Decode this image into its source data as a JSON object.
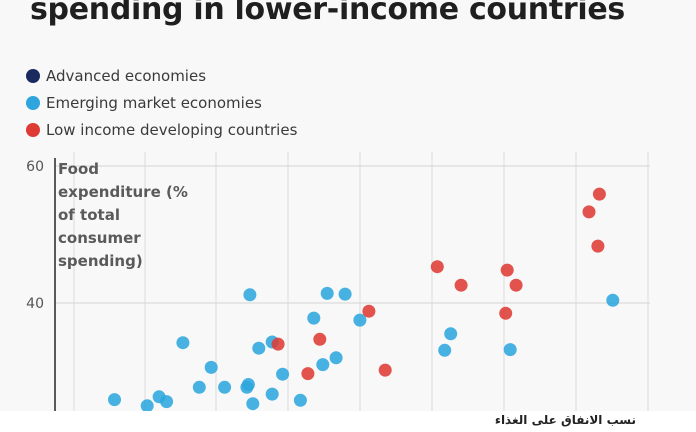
{
  "chart_data": {
    "type": "scatter",
    "title": "spending in lower-income countries",
    "ylabel": "Food expenditure (% of total consumer spending)",
    "xlabel": "",
    "ylim": [
      25,
      62
    ],
    "yticks": [
      40,
      60
    ],
    "grid": true,
    "legend_placement": "top-left",
    "series": [
      {
        "name": "Advanced economies",
        "color": "#1b2a5e",
        "points": []
      },
      {
        "name": "Emerging market economies",
        "color": "#2ea6dd",
        "points": [
          [
            26,
            25.9
          ],
          [
            29,
            26.3
          ],
          [
            29.5,
            25.6
          ],
          [
            28.2,
            25.0
          ],
          [
            30.6,
            34.2
          ],
          [
            31.7,
            27.7
          ],
          [
            32.5,
            30.6
          ],
          [
            33.4,
            27.7
          ],
          [
            34.9,
            27.7
          ],
          [
            35,
            28.1
          ],
          [
            35.1,
            41.2
          ],
          [
            35.3,
            25.3
          ],
          [
            35.7,
            33.4
          ],
          [
            36.6,
            26.7
          ],
          [
            37.3,
            29.6
          ],
          [
            36.6,
            34.3
          ],
          [
            38.5,
            25.8
          ],
          [
            39.4,
            37.8
          ],
          [
            40,
            31.0
          ],
          [
            40.3,
            41.4
          ],
          [
            40.9,
            32.0
          ],
          [
            41.5,
            41.3
          ],
          [
            42.5,
            37.5
          ],
          [
            48.2,
            33.1
          ],
          [
            48.6,
            35.5
          ],
          [
            52.6,
            33.2
          ],
          [
            59.5,
            40.4
          ]
        ]
      },
      {
        "name": "Low income developing countries",
        "color": "#dd3b33",
        "points": [
          [
            37,
            34.0
          ],
          [
            39,
            29.7
          ],
          [
            39.8,
            34.7
          ],
          [
            43.1,
            38.8
          ],
          [
            44.2,
            30.2
          ],
          [
            47.7,
            45.3
          ],
          [
            49.3,
            42.6
          ],
          [
            52.3,
            38.5
          ],
          [
            52.4,
            44.8
          ],
          [
            53,
            42.6
          ],
          [
            57.9,
            53.3
          ],
          [
            58.5,
            48.3
          ],
          [
            58.6,
            55.9
          ]
        ]
      }
    ]
  },
  "caption": "نسب الانفاق على الغذاء"
}
